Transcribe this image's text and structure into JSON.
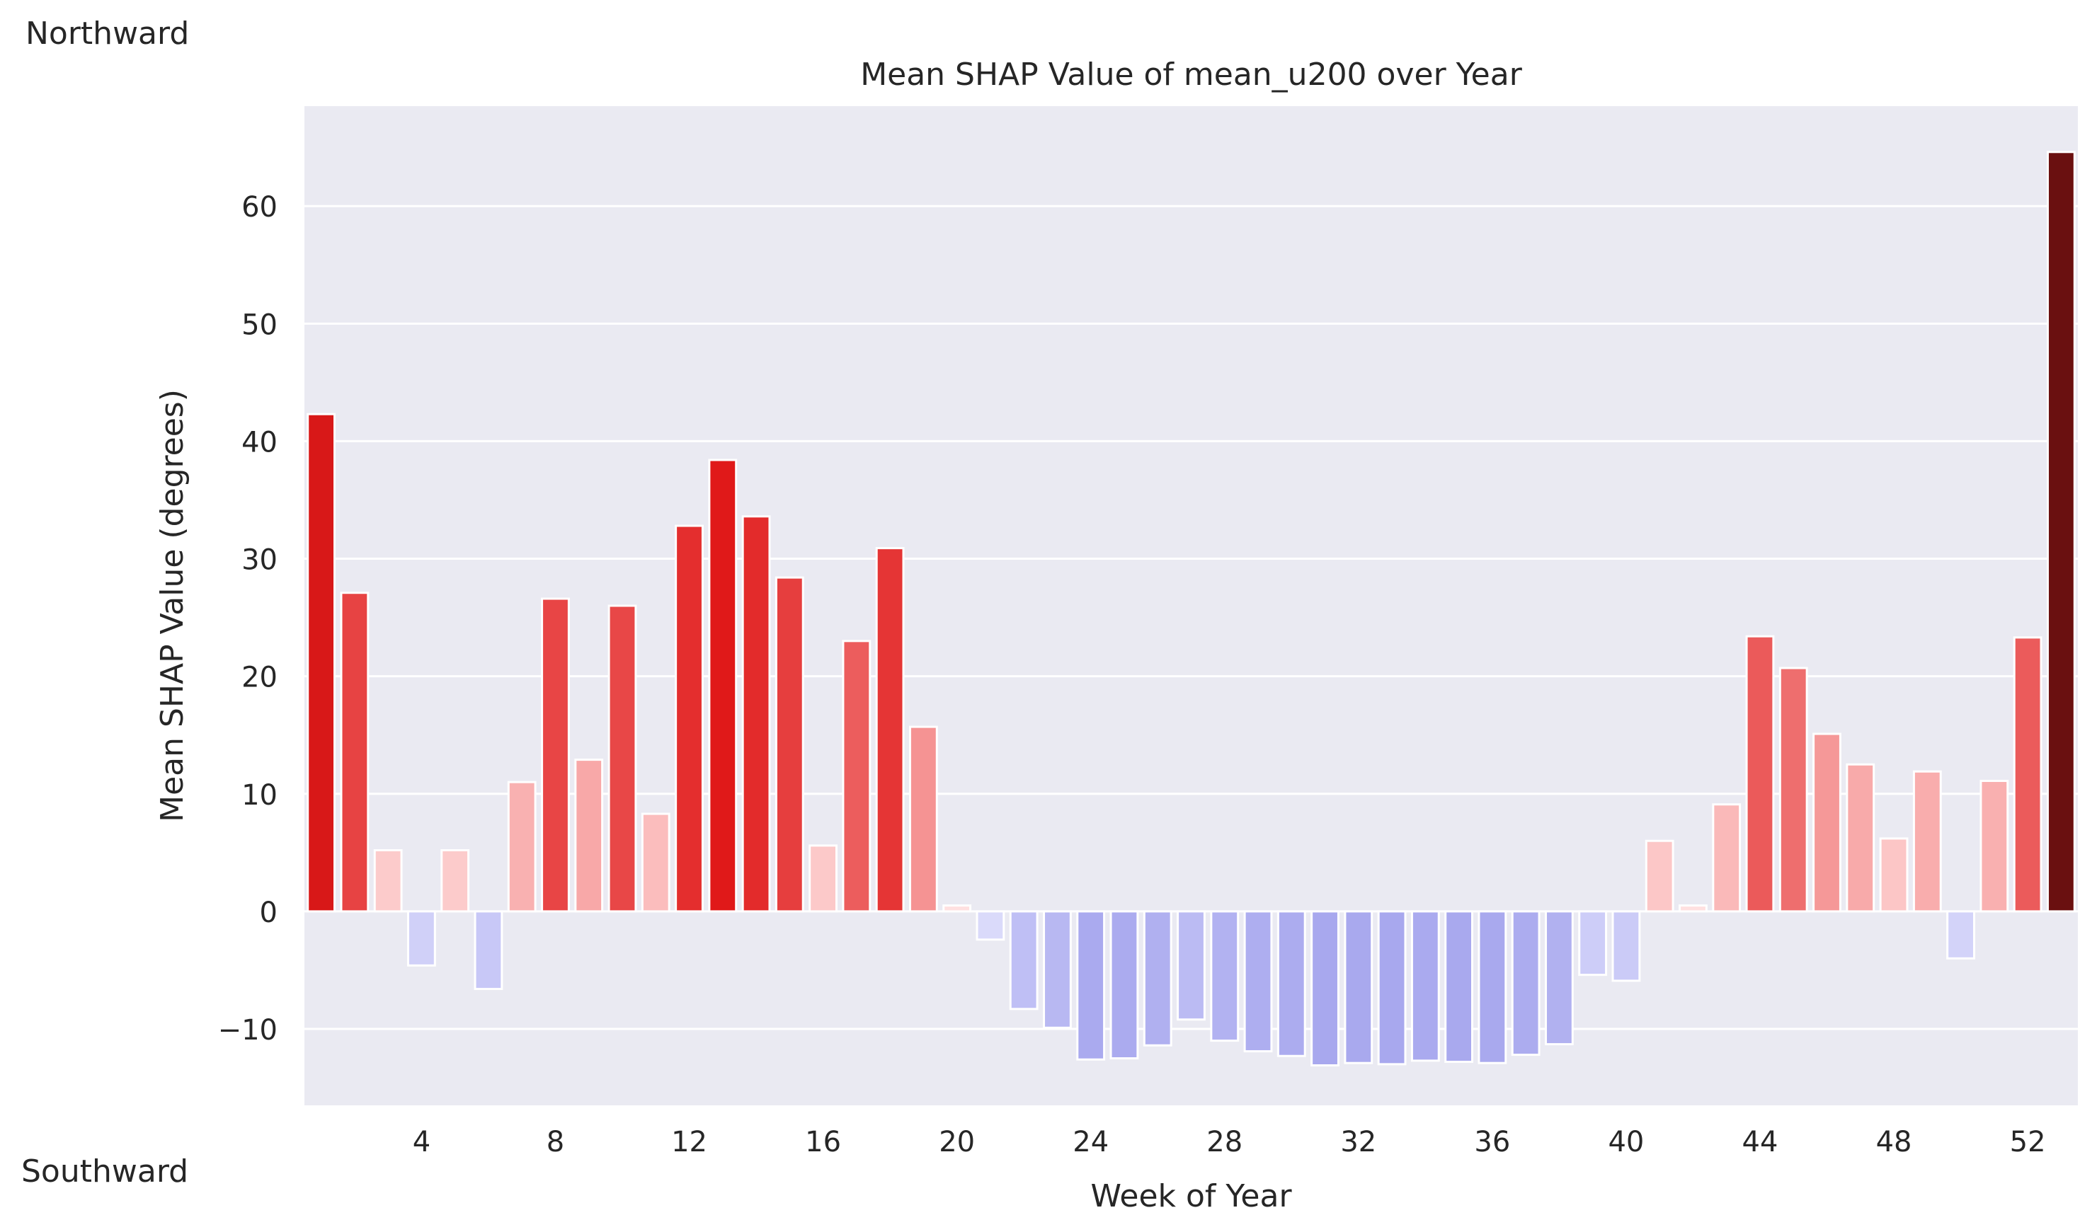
{
  "chart_data": {
    "type": "bar",
    "title": "Mean SHAP Value of mean_u200 over Year",
    "xlabel": "Week of Year",
    "ylabel": "Mean SHAP Value (degrees)",
    "ylim": [
      -16.5,
      68.5
    ],
    "yticks": [
      -10,
      0,
      10,
      20,
      30,
      40,
      50,
      60
    ],
    "xticks": [
      4,
      8,
      12,
      16,
      20,
      24,
      28,
      32,
      36,
      40,
      44,
      48,
      52
    ],
    "grid": true,
    "weeks": [
      1,
      2,
      3,
      4,
      5,
      6,
      7,
      8,
      9,
      10,
      11,
      12,
      13,
      14,
      15,
      16,
      17,
      18,
      19,
      20,
      21,
      22,
      23,
      24,
      25,
      26,
      27,
      28,
      29,
      30,
      31,
      32,
      33,
      34,
      35,
      36,
      37,
      38,
      39,
      40,
      41,
      42,
      43,
      44,
      45,
      46,
      47,
      48,
      49,
      50,
      51,
      52,
      53
    ],
    "values": [
      42.3,
      27.1,
      5.2,
      -4.6,
      5.2,
      -6.6,
      11.0,
      26.6,
      12.9,
      26.0,
      8.3,
      32.8,
      38.4,
      33.6,
      28.4,
      5.6,
      23.0,
      30.9,
      15.7,
      0.5,
      -2.4,
      -8.3,
      -9.9,
      -12.6,
      -12.5,
      -11.4,
      -9.2,
      -11.0,
      -11.9,
      -12.3,
      -13.1,
      -12.9,
      -13.0,
      -12.7,
      -12.8,
      -12.9,
      -12.2,
      -11.3,
      -5.4,
      -5.9,
      6.0,
      0.5,
      9.1,
      23.4,
      20.7,
      15.1,
      12.5,
      6.2,
      11.9,
      -4.0,
      11.1,
      23.3,
      64.6
    ]
  },
  "annotations": {
    "top": "Northward",
    "bottom": "Southward"
  },
  "colors": {
    "plot_background": "#eaeaf2",
    "grid": "#ffffff",
    "text": "#262626",
    "positive_ramp": [
      "#ffe2e2",
      "#f8a8a8",
      "#e84848",
      "#e01818",
      "#c41818",
      "#6a1010"
    ],
    "negative_ramp": [
      "#e4e4fb",
      "#c8c8f7",
      "#a8a8ee"
    ]
  }
}
